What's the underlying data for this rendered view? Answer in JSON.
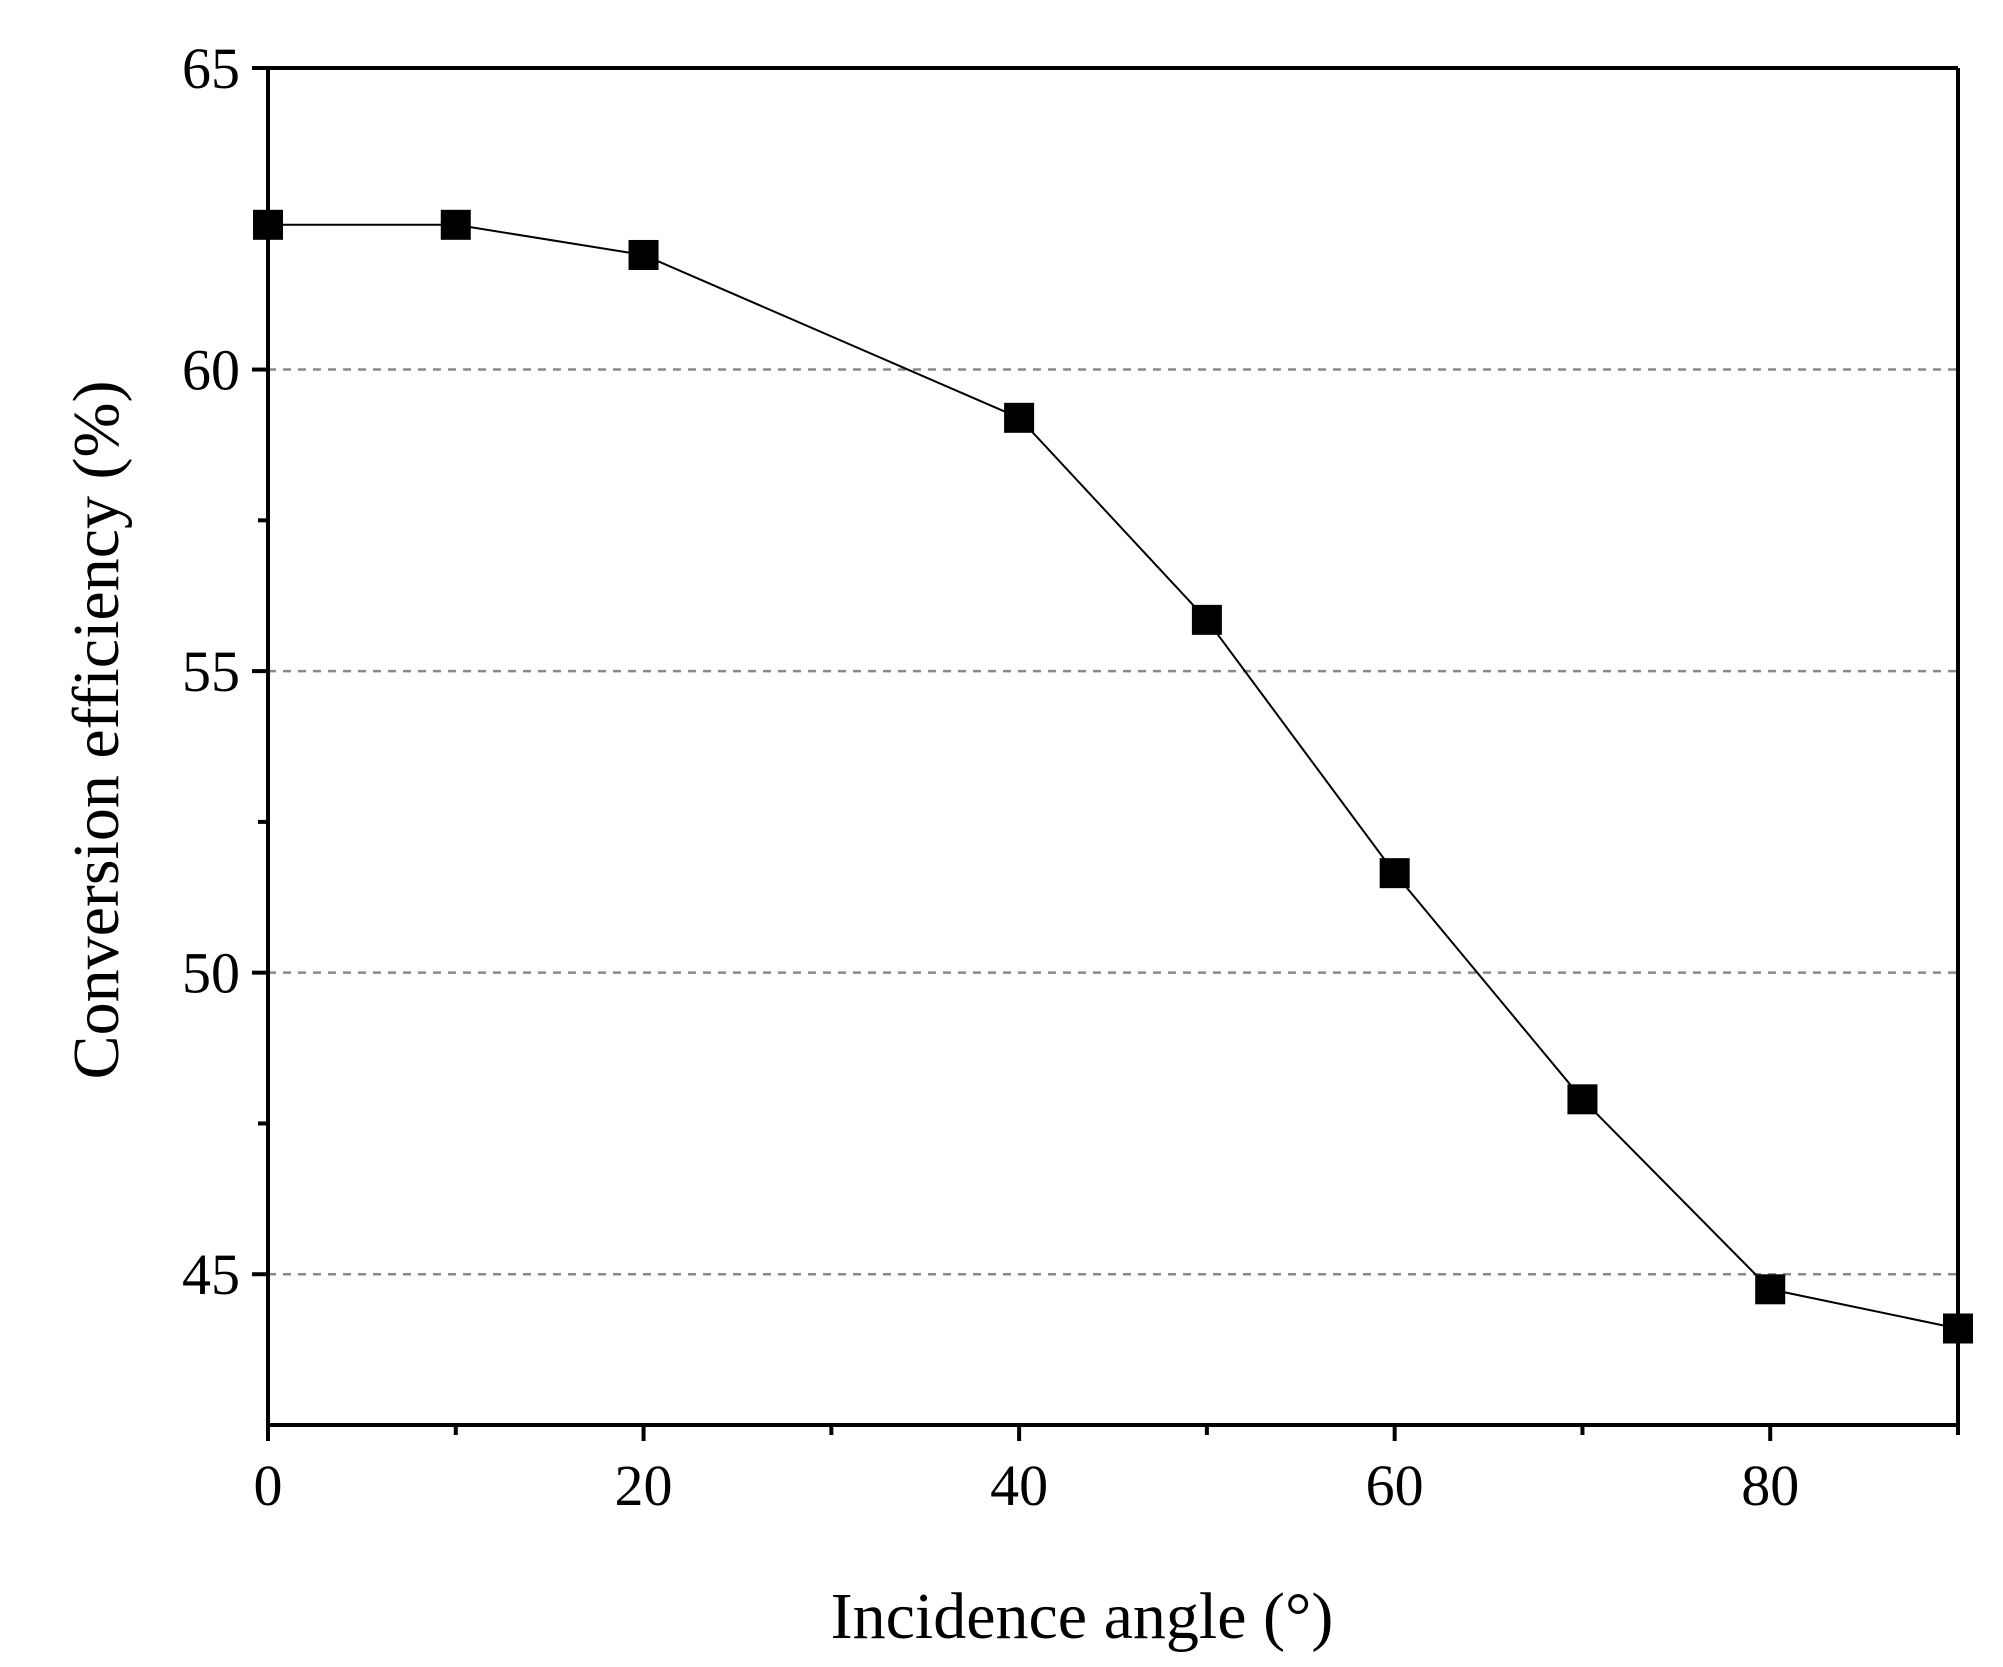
{
  "chart_data": {
    "type": "line",
    "title": "",
    "xlabel": "Incidence angle (°)",
    "ylabel": "Conversion efficiency (%)",
    "xlim": [
      0,
      90
    ],
    "ylim": [
      42.5,
      65
    ],
    "x_ticks": [
      0,
      20,
      40,
      60,
      80
    ],
    "x_tick_labels": [
      "0",
      "20",
      "40",
      "60",
      "80"
    ],
    "x_minor_ticks": [
      10,
      30,
      50,
      70,
      90
    ],
    "y_ticks": [
      45,
      50,
      55,
      60,
      65
    ],
    "y_tick_labels": [
      "45",
      "50",
      "55",
      "60",
      "65"
    ],
    "y_minor_ticks": [
      47.5,
      52.5,
      57.5,
      62.5
    ],
    "grid": "dashed horizontal at major y ticks",
    "series": [
      {
        "name": "Conversion efficiency",
        "marker": "filled-square",
        "line_color": "#000000",
        "marker_color": "#000000",
        "x": [
          0,
          10,
          20,
          40,
          50,
          60,
          70,
          80,
          90
        ],
        "y": [
          62.4,
          62.4,
          61.9,
          59.2,
          55.85,
          51.65,
          47.9,
          44.75,
          44.1
        ]
      }
    ]
  }
}
